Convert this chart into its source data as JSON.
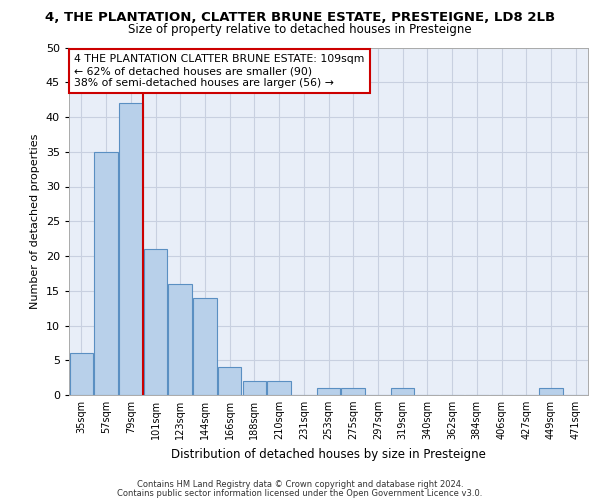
{
  "title": "4, THE PLANTATION, CLATTER BRUNE ESTATE, PRESTEIGNE, LD8 2LB",
  "subtitle": "Size of property relative to detached houses in Presteigne",
  "xlabel": "Distribution of detached houses by size in Presteigne",
  "ylabel": "Number of detached properties",
  "bar_labels": [
    "35sqm",
    "57sqm",
    "79sqm",
    "101sqm",
    "123sqm",
    "144sqm",
    "166sqm",
    "188sqm",
    "210sqm",
    "231sqm",
    "253sqm",
    "275sqm",
    "297sqm",
    "319sqm",
    "340sqm",
    "362sqm",
    "384sqm",
    "406sqm",
    "427sqm",
    "449sqm",
    "471sqm"
  ],
  "bar_values": [
    6,
    35,
    42,
    21,
    16,
    14,
    4,
    2,
    2,
    0,
    1,
    1,
    0,
    1,
    0,
    0,
    0,
    0,
    0,
    1,
    0
  ],
  "bar_color": "#b8d0ea",
  "bar_edge_color": "#5a8fc2",
  "vline_x": 2.5,
  "vline_color": "#cc0000",
  "annotation_text": "4 THE PLANTATION CLATTER BRUNE ESTATE: 109sqm\n← 62% of detached houses are smaller (90)\n38% of semi-detached houses are larger (56) →",
  "annotation_box_color": "#ffffff",
  "annotation_box_edge": "#cc0000",
  "ylim": [
    0,
    50
  ],
  "yticks": [
    0,
    5,
    10,
    15,
    20,
    25,
    30,
    35,
    40,
    45,
    50
  ],
  "background_color": "#ffffff",
  "axes_bg_color": "#e8eef8",
  "grid_color": "#c8d0e0",
  "footer_line1": "Contains HM Land Registry data © Crown copyright and database right 2024.",
  "footer_line2": "Contains public sector information licensed under the Open Government Licence v3.0."
}
